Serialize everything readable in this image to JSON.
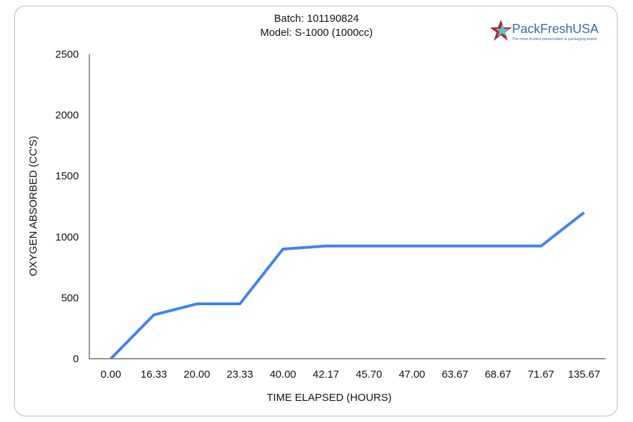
{
  "chart_data": {
    "type": "line",
    "title": "Batch: 101190824",
    "subtitle": "Model: S-1000 (1000cc)",
    "xlabel": "TIME ELAPSED (HOURS)",
    "ylabel": "OXYGEN ABSORBED (CC'S)",
    "categories": [
      "0.00",
      "16.33",
      "20.00",
      "23.33",
      "40.00",
      "42.17",
      "45.70",
      "47.00",
      "63.67",
      "68.67",
      "71.67",
      "135.67"
    ],
    "series": [
      {
        "values": [
          0,
          360,
          450,
          450,
          900,
          925,
          925,
          925,
          925,
          925,
          925,
          1200
        ],
        "color": "#3f83f0"
      }
    ],
    "ylim": [
      0,
      2500
    ],
    "yticks": [
      0,
      500,
      1000,
      1500,
      2000,
      2500
    ],
    "grid": false,
    "legend": "none"
  },
  "logo": {
    "brand": "PackFreshUSA",
    "tagline": "The most trusted preservation & packaging brand",
    "colors": {
      "star_red": "#b3232a",
      "star_teal": "#5cc5cf",
      "text": "#3b6aa8"
    }
  }
}
